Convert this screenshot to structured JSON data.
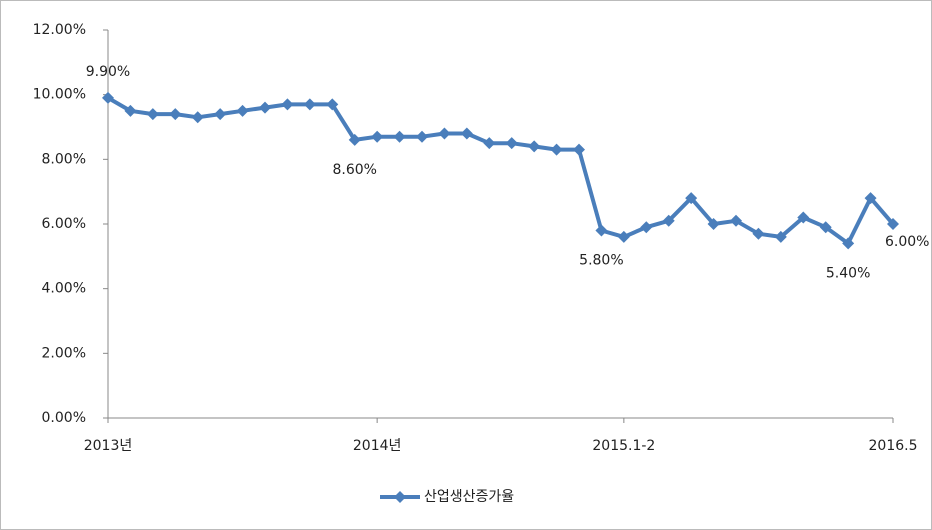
{
  "chart_data": {
    "type": "line",
    "categories": [
      "2013년",
      null,
      null,
      null,
      null,
      null,
      null,
      null,
      null,
      null,
      null,
      null,
      "2014년",
      null,
      null,
      null,
      null,
      null,
      null,
      null,
      null,
      null,
      null,
      "2015.1-2",
      null,
      null,
      null,
      null,
      null,
      null,
      null,
      null,
      null,
      null,
      null,
      "2016.5"
    ],
    "series": [
      {
        "name": "산업생산증가율",
        "color": "#4a7ebb",
        "values": [
          9.9,
          9.5,
          9.4,
          9.4,
          9.3,
          9.4,
          9.5,
          9.6,
          9.7,
          9.7,
          9.7,
          8.6,
          8.7,
          8.7,
          8.7,
          8.8,
          8.8,
          8.5,
          8.5,
          8.4,
          8.3,
          8.3,
          5.8,
          5.6,
          5.9,
          6.1,
          6.8,
          6.0,
          6.1,
          5.7,
          5.6,
          6.2,
          5.9,
          5.4,
          6.8,
          6.0
        ],
        "value_labels": [
          "9.90%",
          null,
          null,
          null,
          null,
          null,
          null,
          null,
          null,
          null,
          null,
          "8.60%",
          null,
          null,
          null,
          null,
          null,
          null,
          null,
          null,
          null,
          null,
          "5.80%",
          null,
          null,
          null,
          null,
          null,
          null,
          null,
          null,
          null,
          null,
          "5.40%",
          null,
          "6.00%"
        ]
      }
    ],
    "ylim": [
      0,
      12
    ],
    "yticks": [
      {
        "value": 0,
        "label": "0.00%"
      },
      {
        "value": 2,
        "label": "2.00%"
      },
      {
        "value": 4,
        "label": "4.00%"
      },
      {
        "value": 6,
        "label": "6.00%"
      },
      {
        "value": 8,
        "label": "8.00%"
      },
      {
        "value": 10,
        "label": "10.00%"
      },
      {
        "value": 12,
        "label": "12.00%"
      }
    ],
    "grid": false,
    "legend": "bottom"
  }
}
